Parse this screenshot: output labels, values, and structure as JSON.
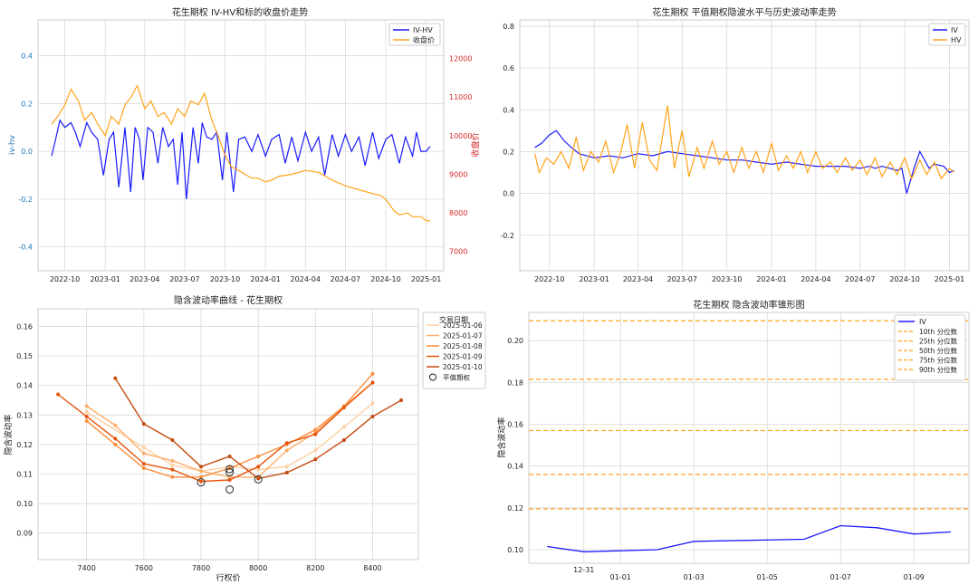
{
  "panels": {
    "p1": {
      "title": "花生期权 IV-HV和标的收盘价走势",
      "ylabel_left": "iv-hv",
      "ylabel_right": "收盘价",
      "legend": [
        "IV-HV",
        "收盘价"
      ]
    },
    "p2": {
      "title": "花生期权 平值期权隐波水平与历史波动率走势",
      "legend": [
        "IV",
        "HV"
      ]
    },
    "p3": {
      "title": "隐含波动率曲线 - 花生期权",
      "xlabel": "行权价",
      "ylabel": "隐含波动率",
      "legend_title": "交易日期",
      "atm_label": "平值期权"
    },
    "p4": {
      "title": "花生期权 隐含波动率锥形图",
      "ylabel": "隐含波动率",
      "legend_iv": "IV"
    }
  },
  "colors": {
    "iv": "#1a1aff",
    "hv": "#ffa31a",
    "left_axis": "#1f77b4",
    "right_axis": "#d62728",
    "grid": "#d9d9d9",
    "smile": [
      "#fdd0a2",
      "#fdae6b",
      "#fd8d3c",
      "#e6550d",
      "#c44b0f"
    ]
  },
  "chart_data": [
    {
      "type": "line",
      "title": "花生期权 IV-HV和标的收盘价走势",
      "ylabel": "iv-hv",
      "y2label": "收盘价",
      "x_range": [
        "2022-08-01",
        "2025-02-10"
      ],
      "x_ticks": [
        "2022-10",
        "2023-01",
        "2023-04",
        "2023-07",
        "2023-10",
        "2024-01",
        "2024-04",
        "2024-07",
        "2024-10",
        "2025-01"
      ],
      "ylim": [
        -0.5,
        0.55
      ],
      "yticks": [
        0.4,
        0.2,
        0.0,
        -0.2,
        -0.4
      ],
      "y2lim": [
        6500,
        13000
      ],
      "y2ticks": [
        12000,
        11000,
        10000,
        9000,
        8000,
        7000
      ],
      "grid": true,
      "legend_position": "upper right",
      "series": [
        {
          "name": "IV-HV",
          "axis": "left",
          "x": [
            "2022-09-01",
            "2022-09-10",
            "2022-09-20",
            "2022-10-01",
            "2022-10-15",
            "2022-10-25",
            "2022-11-05",
            "2022-11-20",
            "2022-12-01",
            "2022-12-15",
            "2022-12-28",
            "2023-01-10",
            "2023-01-20",
            "2023-02-01",
            "2023-02-15",
            "2023-02-28",
            "2023-03-10",
            "2023-03-20",
            "2023-03-28",
            "2023-04-08",
            "2023-04-20",
            "2023-05-01",
            "2023-05-12",
            "2023-05-25",
            "2023-06-05",
            "2023-06-15",
            "2023-06-25",
            "2023-07-05",
            "2023-07-20",
            "2023-08-01",
            "2023-08-10",
            "2023-08-20",
            "2023-09-01",
            "2023-09-12",
            "2023-09-25",
            "2023-10-05",
            "2023-10-20",
            "2023-11-01",
            "2023-11-15",
            "2023-12-01",
            "2023-12-15",
            "2024-01-01",
            "2024-01-15",
            "2024-02-01",
            "2024-02-15",
            "2024-03-01",
            "2024-03-15",
            "2024-04-01",
            "2024-04-15",
            "2024-05-01",
            "2024-05-15",
            "2024-06-01",
            "2024-06-15",
            "2024-07-01",
            "2024-07-15",
            "2024-08-01",
            "2024-08-15",
            "2024-09-01",
            "2024-09-15",
            "2024-10-01",
            "2024-10-15",
            "2024-11-01",
            "2024-11-15",
            "2024-12-01",
            "2024-12-10",
            "2024-12-20",
            "2025-01-01",
            "2025-01-10"
          ],
          "values": [
            -0.02,
            0.05,
            0.13,
            0.1,
            0.12,
            0.08,
            0.02,
            0.12,
            0.08,
            0.05,
            -0.1,
            0.05,
            0.08,
            -0.15,
            0.1,
            -0.17,
            0.1,
            0.05,
            -0.12,
            0.1,
            0.08,
            -0.05,
            0.1,
            0.02,
            0.05,
            -0.14,
            0.08,
            -0.2,
            0.1,
            -0.05,
            0.12,
            0.06,
            0.05,
            0.08,
            -0.12,
            0.08,
            -0.17,
            0.05,
            0.06,
            0.0,
            0.07,
            -0.02,
            0.05,
            0.07,
            -0.05,
            0.06,
            -0.04,
            0.08,
            0.0,
            0.06,
            -0.1,
            0.07,
            -0.02,
            0.07,
            0.0,
            0.06,
            -0.06,
            0.08,
            -0.03,
            0.05,
            0.07,
            -0.05,
            0.06,
            -0.02,
            0.08,
            0.0,
            0.0,
            0.02
          ]
        },
        {
          "name": "收盘价",
          "axis": "right",
          "x": [
            "2022-09-01",
            "2022-09-15",
            "2022-10-01",
            "2022-10-15",
            "2022-11-01",
            "2022-11-15",
            "2022-12-01",
            "2022-12-15",
            "2023-01-01",
            "2023-01-15",
            "2023-02-01",
            "2023-02-15",
            "2023-03-01",
            "2023-03-15",
            "2023-04-01",
            "2023-04-15",
            "2023-05-01",
            "2023-05-15",
            "2023-06-01",
            "2023-06-15",
            "2023-07-01",
            "2023-07-15",
            "2023-08-01",
            "2023-08-15",
            "2023-09-01",
            "2023-09-15",
            "2023-10-01",
            "2023-10-15",
            "2023-11-01",
            "2023-11-15",
            "2023-12-01",
            "2023-12-15",
            "2024-01-01",
            "2024-01-15",
            "2024-02-01",
            "2024-03-01",
            "2024-04-01",
            "2024-05-01",
            "2024-06-01",
            "2024-07-01",
            "2024-08-01",
            "2024-09-01",
            "2024-09-20",
            "2024-10-01",
            "2024-10-20",
            "2024-11-01",
            "2024-11-20",
            "2024-12-01",
            "2024-12-20",
            "2025-01-01",
            "2025-01-10"
          ],
          "values": [
            10300,
            10500,
            10800,
            11200,
            10900,
            10400,
            10600,
            10300,
            10000,
            10500,
            10300,
            10800,
            11000,
            11300,
            10700,
            10900,
            10500,
            10600,
            10300,
            10700,
            10500,
            10900,
            10800,
            11100,
            10400,
            10000,
            9500,
            9200,
            9100,
            9000,
            8900,
            8900,
            8800,
            8850,
            8950,
            9000,
            9100,
            9050,
            8850,
            8700,
            8600,
            8500,
            8450,
            8350,
            8050,
            7950,
            8000,
            7900,
            7900,
            7800,
            7800
          ]
        }
      ]
    },
    {
      "type": "line",
      "title": "花生期权 平值期权隐波水平与历史波动率走势",
      "x_range": [
        "2022-08-01",
        "2025-02-10"
      ],
      "x_ticks": [
        "2022-10",
        "2023-01",
        "2023-04",
        "2023-07",
        "2023-10",
        "2024-01",
        "2024-04",
        "2024-07",
        "2024-10",
        "2025-01"
      ],
      "ylim": [
        -0.37,
        0.83
      ],
      "yticks": [
        0.8,
        0.6,
        0.4,
        0.2,
        0.0,
        -0.2
      ],
      "grid": true,
      "legend_position": "upper right",
      "series": [
        {
          "name": "IV",
          "x": [
            "2022-09-01",
            "2022-09-15",
            "2022-10-01",
            "2022-10-15",
            "2022-11-01",
            "2022-11-15",
            "2022-12-01",
            "2023-01-01",
            "2023-02-01",
            "2023-03-01",
            "2023-04-01",
            "2023-05-01",
            "2023-06-01",
            "2023-07-01",
            "2023-08-01",
            "2023-09-01",
            "2023-10-01",
            "2023-11-01",
            "2023-12-01",
            "2024-01-01",
            "2024-02-01",
            "2024-03-01",
            "2024-04-01",
            "2024-05-01",
            "2024-06-01",
            "2024-07-01",
            "2024-07-20",
            "2024-08-01",
            "2024-08-15",
            "2024-09-01",
            "2024-09-15",
            "2024-09-25",
            "2024-10-05",
            "2024-10-20",
            "2024-11-01",
            "2024-11-20",
            "2024-12-01",
            "2024-12-20",
            "2025-01-01",
            "2025-01-10"
          ],
          "values": [
            0.22,
            0.24,
            0.28,
            0.3,
            0.25,
            0.22,
            0.19,
            0.17,
            0.18,
            0.17,
            0.19,
            0.18,
            0.2,
            0.19,
            0.18,
            0.17,
            0.16,
            0.16,
            0.15,
            0.14,
            0.15,
            0.14,
            0.13,
            0.13,
            0.13,
            0.12,
            0.13,
            0.12,
            0.13,
            0.12,
            0.11,
            0.12,
            0.0,
            0.12,
            0.2,
            0.12,
            0.14,
            0.13,
            0.1,
            0.11
          ]
        },
        {
          "name": "HV",
          "x": [
            "2022-09-01",
            "2022-09-10",
            "2022-09-25",
            "2022-10-10",
            "2022-10-25",
            "2022-11-10",
            "2022-11-25",
            "2022-12-10",
            "2022-12-25",
            "2023-01-10",
            "2023-01-25",
            "2023-02-10",
            "2023-02-25",
            "2023-03-10",
            "2023-03-25",
            "2023-04-10",
            "2023-04-25",
            "2023-05-10",
            "2023-05-20",
            "2023-06-01",
            "2023-06-15",
            "2023-07-01",
            "2023-07-15",
            "2023-08-01",
            "2023-08-15",
            "2023-09-01",
            "2023-09-15",
            "2023-10-01",
            "2023-10-15",
            "2023-11-01",
            "2023-11-15",
            "2023-12-01",
            "2023-12-15",
            "2024-01-01",
            "2024-01-15",
            "2024-02-01",
            "2024-02-15",
            "2024-03-01",
            "2024-03-15",
            "2024-04-01",
            "2024-04-15",
            "2024-05-01",
            "2024-05-15",
            "2024-06-01",
            "2024-06-15",
            "2024-07-01",
            "2024-07-15",
            "2024-08-01",
            "2024-08-15",
            "2024-09-01",
            "2024-09-15",
            "2024-10-01",
            "2024-10-15",
            "2024-11-01",
            "2024-11-15",
            "2024-12-01",
            "2024-12-15",
            "2025-01-01",
            "2025-01-10"
          ],
          "values": [
            0.19,
            0.1,
            0.17,
            0.14,
            0.2,
            0.12,
            0.27,
            0.11,
            0.2,
            0.15,
            0.25,
            0.1,
            0.2,
            0.33,
            0.12,
            0.34,
            0.16,
            0.11,
            0.25,
            0.42,
            0.12,
            0.3,
            0.08,
            0.22,
            0.12,
            0.25,
            0.14,
            0.2,
            0.1,
            0.22,
            0.12,
            0.2,
            0.1,
            0.24,
            0.11,
            0.18,
            0.12,
            0.2,
            0.1,
            0.2,
            0.12,
            0.15,
            0.1,
            0.17,
            0.11,
            0.16,
            0.09,
            0.17,
            0.08,
            0.15,
            0.09,
            0.17,
            0.07,
            0.16,
            0.09,
            0.15,
            0.07,
            0.12,
            0.1
          ]
        }
      ]
    },
    {
      "type": "line",
      "title": "隐含波动率曲线 - 花生期权",
      "xlabel": "行权价",
      "ylabel": "隐含波动率",
      "xlim": [
        7230,
        8560
      ],
      "xticks": [
        7400,
        7600,
        7800,
        8000,
        8200,
        8400
      ],
      "ylim": [
        0.081,
        0.166
      ],
      "yticks": [
        0.16,
        0.15,
        0.14,
        0.13,
        0.12,
        0.11,
        0.1,
        0.09
      ],
      "grid": true,
      "legend_position": "outside upper right",
      "legend_title": "交易日期",
      "series": [
        {
          "name": "2025-01-06",
          "x": [
            7400,
            7600,
            7700,
            7800,
            7900,
            8000,
            8100,
            8200,
            8300,
            8400
          ],
          "values": [
            0.131,
            0.119,
            0.113,
            0.111,
            0.1125,
            0.1115,
            0.1125,
            0.118,
            0.126,
            0.134
          ]
        },
        {
          "name": "2025-01-07",
          "x": [
            7400,
            7500,
            7600,
            7700,
            7800,
            7900,
            8000,
            8100,
            8200,
            8300,
            8400
          ],
          "values": [
            0.133,
            0.1265,
            0.117,
            0.1145,
            0.111,
            0.109,
            0.109,
            0.118,
            0.124,
            0.133,
            0.141
          ]
        },
        {
          "name": "2025-01-08",
          "x": [
            7400,
            7500,
            7600,
            7700,
            7800,
            7900,
            8000,
            8100,
            8200,
            8300,
            8400
          ],
          "values": [
            0.128,
            0.12,
            0.112,
            0.109,
            0.109,
            0.112,
            0.116,
            0.12,
            0.125,
            0.133,
            0.144
          ]
        },
        {
          "name": "2025-01-09",
          "x": [
            7300,
            7400,
            7500,
            7600,
            7700,
            7800,
            7900,
            8000,
            8100,
            8200,
            8300,
            8400
          ],
          "values": [
            0.137,
            0.1295,
            0.122,
            0.1135,
            0.1115,
            0.1075,
            0.108,
            0.1125,
            0.1205,
            0.1235,
            0.1325,
            0.141
          ]
        },
        {
          "name": "2025-01-10",
          "x": [
            7500,
            7600,
            7700,
            7800,
            7900,
            8000,
            8100,
            8200,
            8300,
            8400,
            8500
          ],
          "values": [
            0.1425,
            0.127,
            0.1215,
            0.1125,
            0.116,
            0.1085,
            0.1105,
            0.115,
            0.1215,
            0.1295,
            0.135
          ]
        },
        {
          "name": "平值期权",
          "marker": "circle",
          "x": [
            7800,
            7900,
            7900,
            7900,
            8000
          ],
          "values": [
            0.1072,
            0.1048,
            0.1106,
            0.1117,
            0.1082
          ]
        }
      ]
    },
    {
      "type": "line",
      "title": "花生期权 隐含波动率锥形图",
      "ylabel": "隐含波动率",
      "x_range": [
        "2024-12-29 12:00",
        "2025-01-10 12:00"
      ],
      "x_ticks": [
        "12-31",
        "01-01",
        "01-03",
        "01-05",
        "01-07",
        "01-09"
      ],
      "ylim": [
        0.0935,
        0.2135
      ],
      "yticks": [
        0.2,
        0.18,
        0.16,
        0.14,
        0.12,
        0.1
      ],
      "grid": true,
      "legend_position": "upper right",
      "series": [
        {
          "name": "IV",
          "x": [
            "2024-12-30",
            "2024-12-31",
            "2025-01-02",
            "2025-01-03",
            "2025-01-06",
            "2025-01-07",
            "2025-01-08",
            "2025-01-09",
            "2025-01-10"
          ],
          "values": [
            0.1015,
            0.099,
            0.1,
            0.104,
            0.105,
            0.1115,
            0.1105,
            0.1075,
            0.1085
          ]
        }
      ],
      "percentiles": [
        {
          "name": "10th 分位数",
          "value": 0.1195
        },
        {
          "name": "25th 分位数",
          "value": 0.136
        },
        {
          "name": "50th 分位数",
          "value": 0.157
        },
        {
          "name": "75th 分位数",
          "value": 0.1815
        },
        {
          "name": "90th 分位数",
          "value": 0.2095
        }
      ]
    }
  ]
}
